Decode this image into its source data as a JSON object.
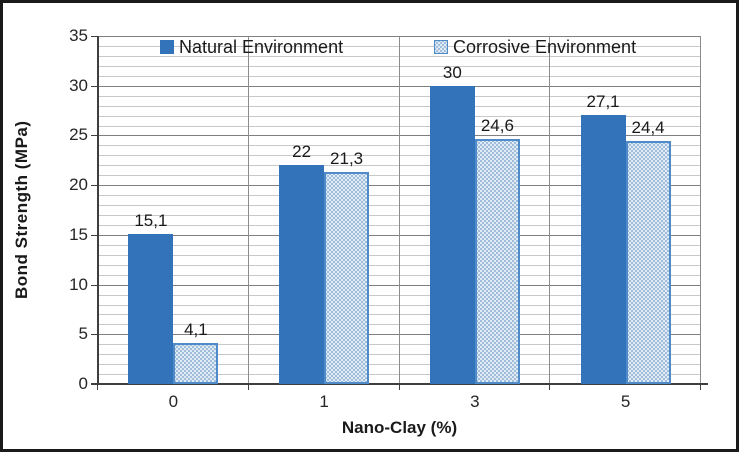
{
  "chart_data": {
    "type": "bar",
    "title": "",
    "xlabel": "Nano-Clay (%)",
    "ylabel": "Bond Strength (MPa)",
    "categories": [
      "0",
      "1",
      "3",
      "5"
    ],
    "series": [
      {
        "name": "Natural Environment",
        "values": [
          15.1,
          22,
          30,
          27.1
        ],
        "value_labels": [
          "15,1",
          "22",
          "30",
          "27,1"
        ],
        "style": "solid",
        "fill": "#3273B9"
      },
      {
        "name": "Corrosive Environment",
        "values": [
          4.1,
          21.3,
          24.6,
          24.4
        ],
        "value_labels": [
          "4,1",
          "21,3",
          "24,6",
          "24,4"
        ],
        "style": "dotted-pattern",
        "fill": "#E1EBF6",
        "dot_color": "#8AAFD4",
        "border_color": "#4E8BC8"
      }
    ],
    "ylim": [
      0,
      35
    ],
    "y_major_unit": 5,
    "y_minor_unit": 1,
    "y_tick_labels": [
      "0",
      "5",
      "10",
      "15",
      "20",
      "25",
      "30",
      "35"
    ],
    "grid": "on",
    "legend_position": "top-inside",
    "legend": [
      "Natural Environment",
      "Corrosive Environment"
    ]
  },
  "colors": {
    "background": "#FFFFFF",
    "frame_border": "#1A1A1A",
    "axis": "#3F3F3F",
    "grid_major": "#7F7F7F",
    "grid_minor": "#C8C8C8",
    "grid_vertical": "#8C8C8C",
    "text": "#1A1A1A"
  }
}
